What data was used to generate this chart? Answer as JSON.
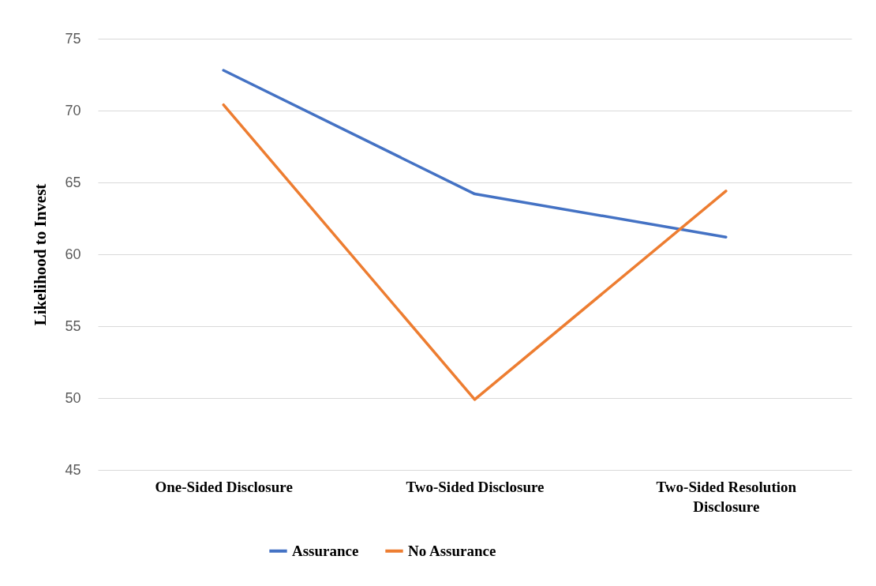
{
  "chart_data": {
    "type": "line",
    "ylabel": "Likelihood to Invest",
    "categories": [
      "One-Sided Disclosure",
      "Two-Sided Disclosure",
      "Two-Sided Resolution Disclosure"
    ],
    "series": [
      {
        "name": "Assurance",
        "color": "#4472c4",
        "values": [
          72.8,
          64.2,
          61.2
        ]
      },
      {
        "name": "No Assurance",
        "color": "#ed7d31",
        "values": [
          70.4,
          49.9,
          64.4
        ]
      }
    ],
    "ylim": [
      45,
      75
    ],
    "yticks": [
      45,
      50,
      55,
      60,
      65,
      70,
      75
    ],
    "grid": "y",
    "legend": "bottom",
    "marker": "none",
    "line_style": "solid"
  }
}
